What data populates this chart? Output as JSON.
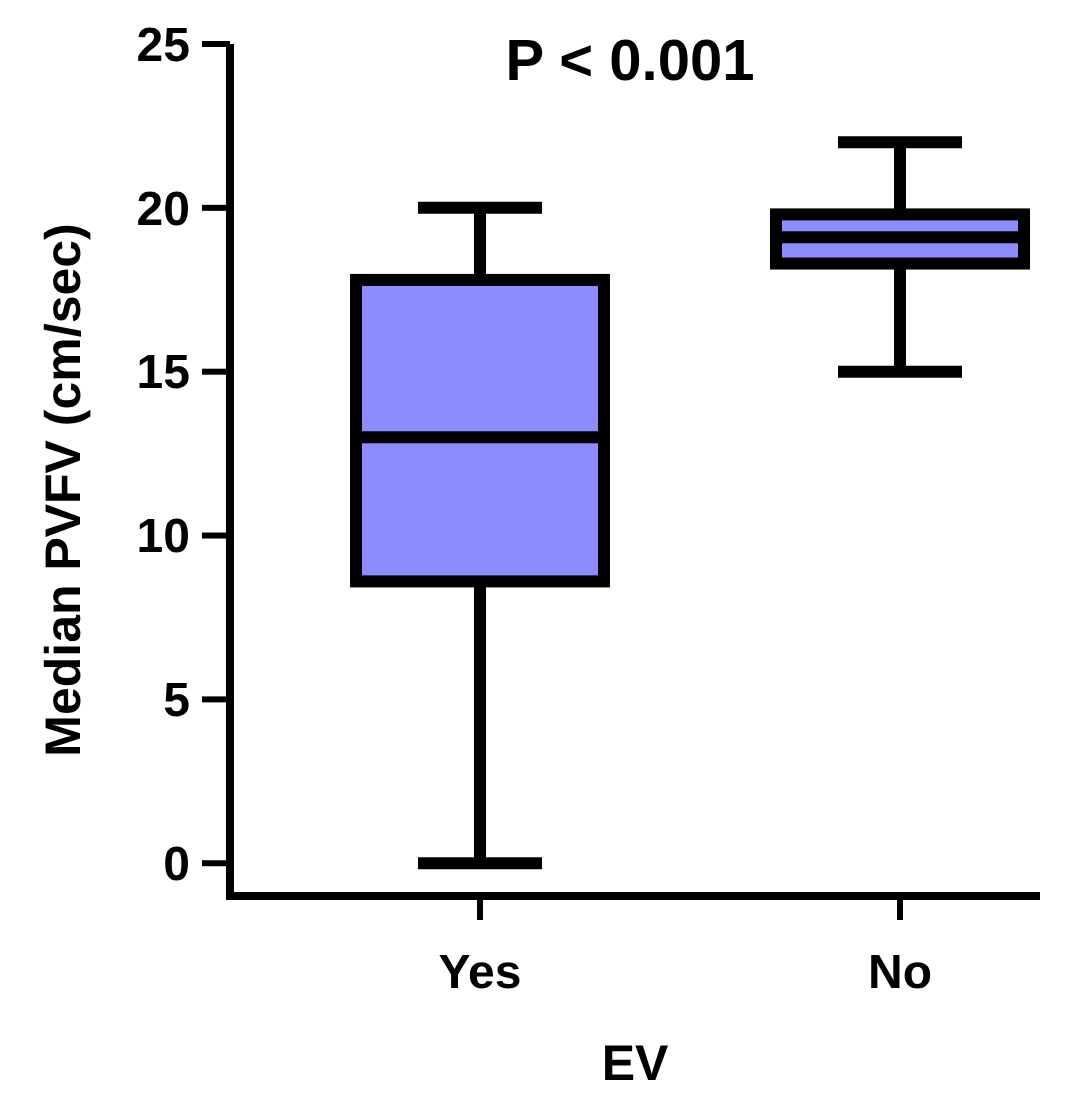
{
  "chart_data": {
    "type": "box",
    "title": "P < 0.001",
    "xlabel": "EV",
    "ylabel": "Median PVFV (cm/sec)",
    "categories": [
      "Yes",
      "No"
    ],
    "color": "#8c8cff",
    "boxes": [
      {
        "low": 0,
        "q1": 8.6,
        "median": 13,
        "q3": 17.8,
        "high": 20
      },
      {
        "low": 15,
        "q1": 18.3,
        "median": 19.1,
        "q3": 19.8,
        "high": 22
      }
    ],
    "ylim": [
      -1,
      25
    ],
    "yticks": [
      0,
      5,
      10,
      15,
      20,
      25
    ],
    "grid": false
  }
}
